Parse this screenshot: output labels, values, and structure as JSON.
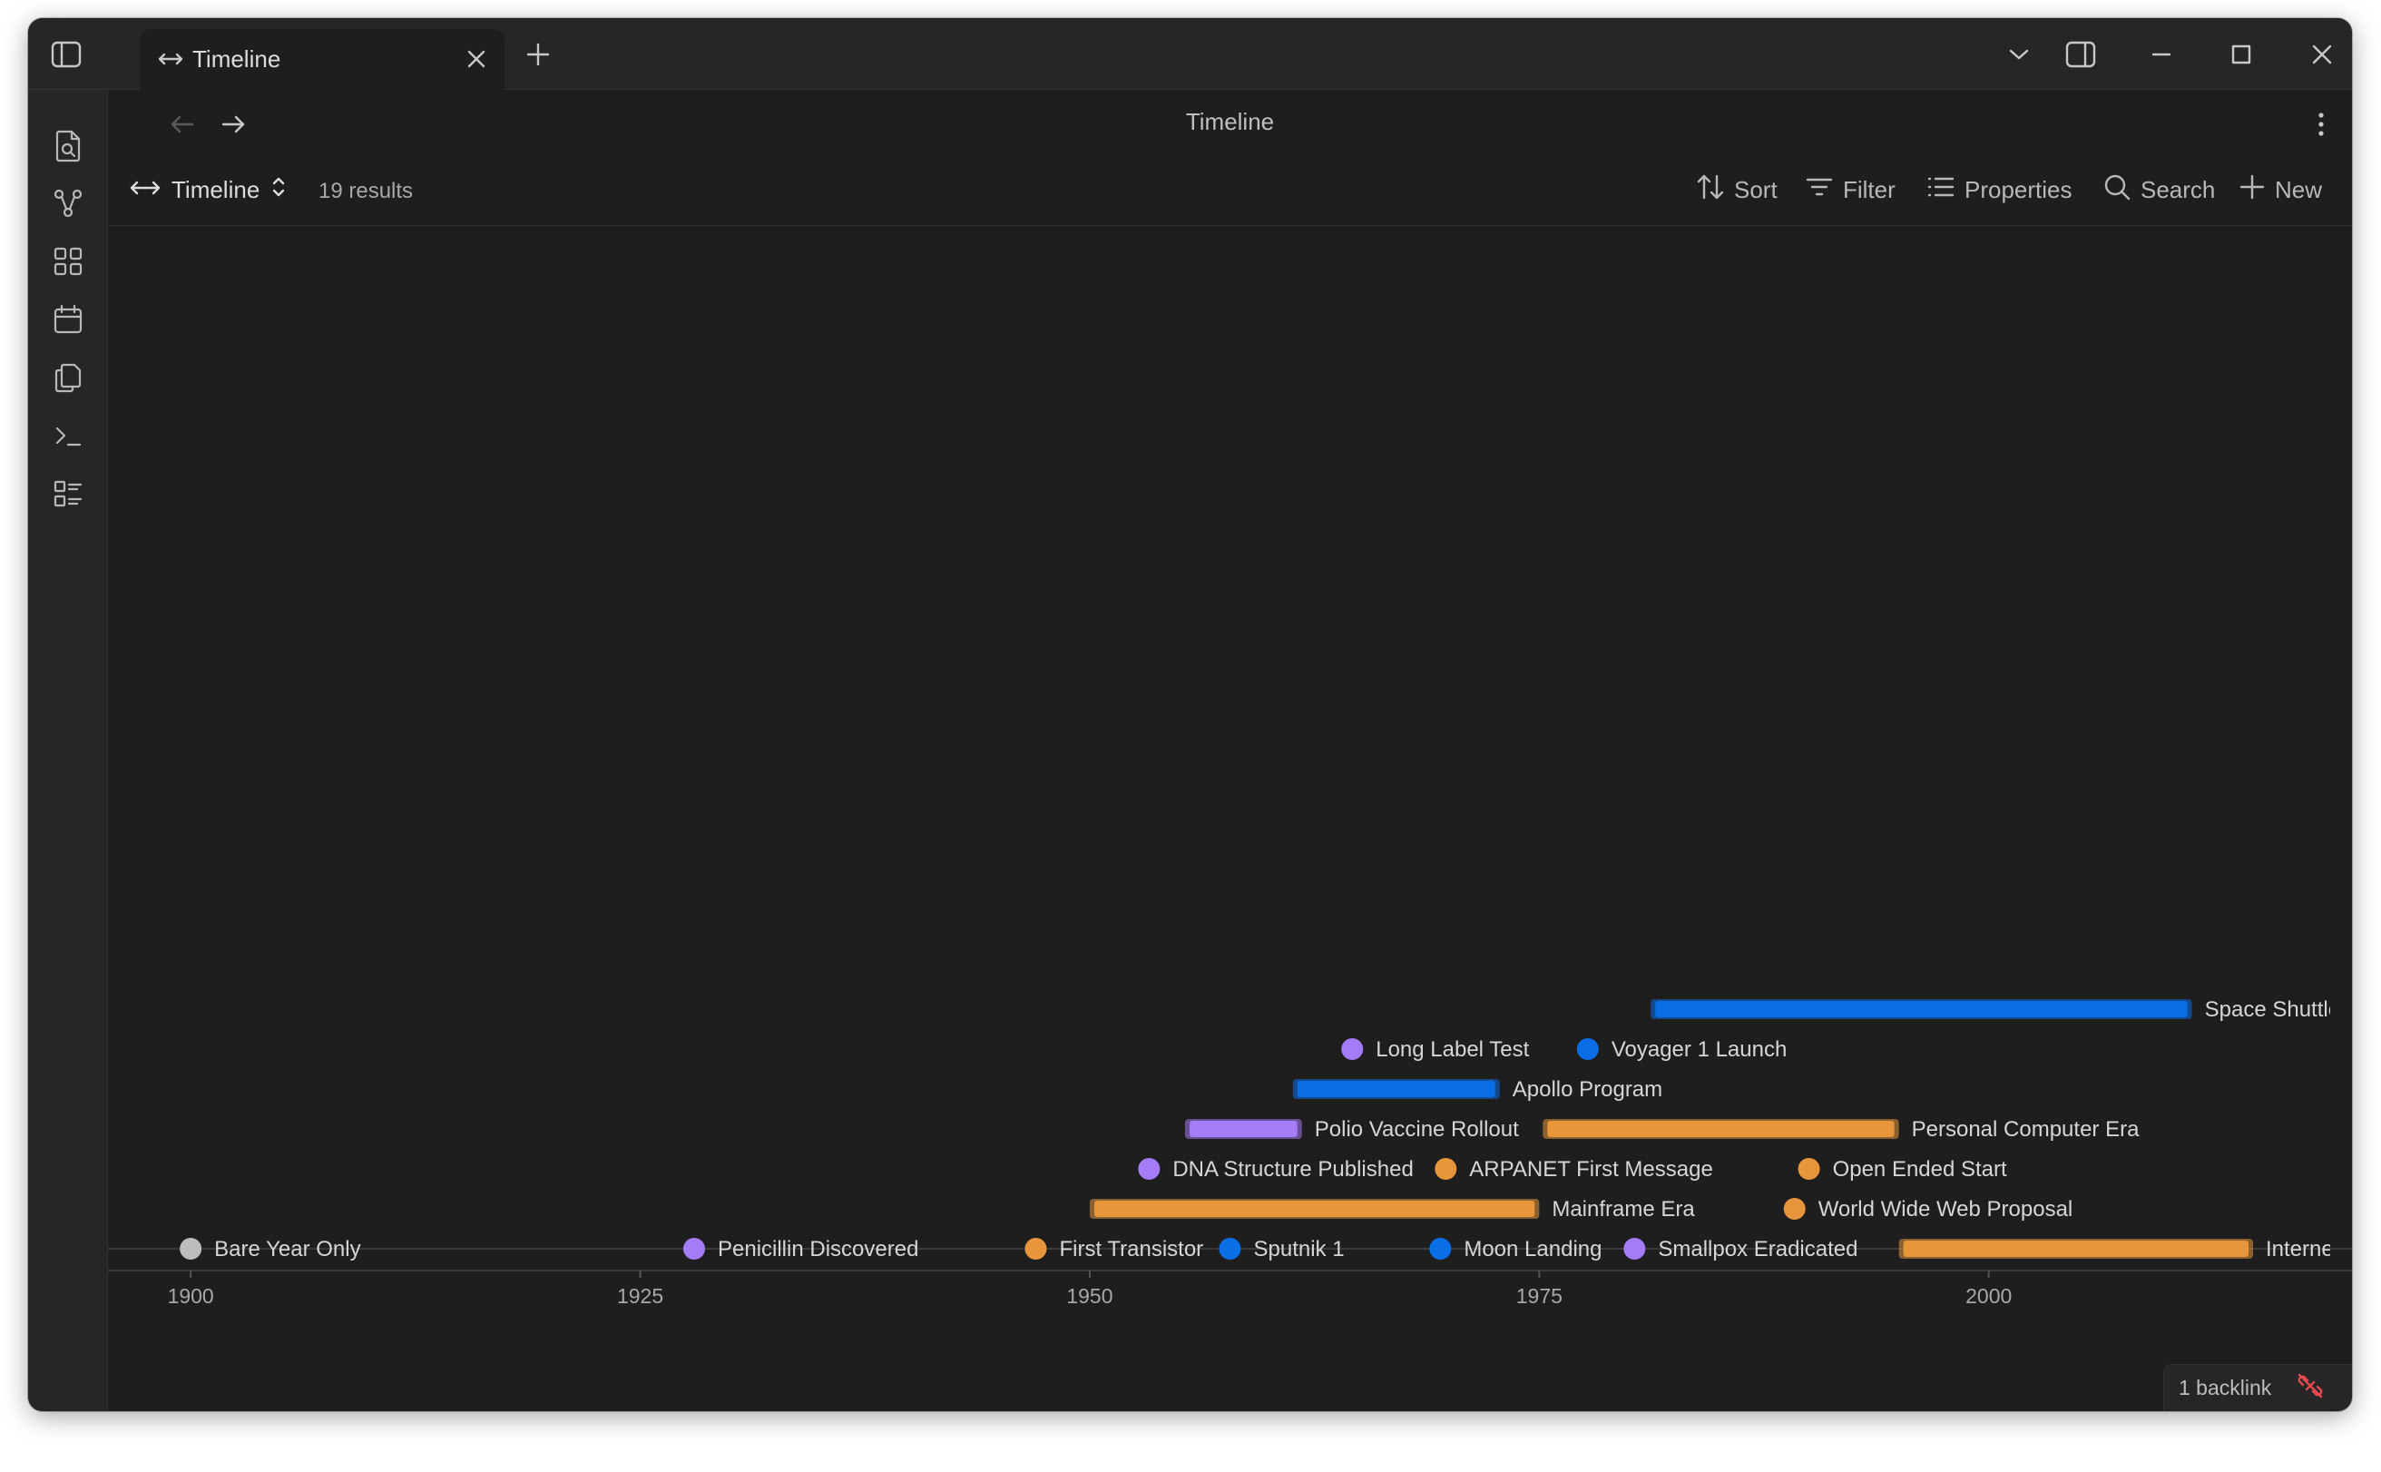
{
  "tab": {
    "title": "Timeline",
    "icon": "arrows-horizontal-icon"
  },
  "nav": {
    "title": "Timeline"
  },
  "toolbar": {
    "view_name": "Timeline",
    "results": "19 results",
    "sort": "Sort",
    "filter": "Filter",
    "properties": "Properties",
    "search": "Search",
    "new": "New"
  },
  "footer": {
    "backlinks": "1 backlink"
  },
  "colors": {
    "blue": "#0a6fe6",
    "purple": "#a47cf5",
    "orange": "#e8963c",
    "gray": "#bdbdbd"
  },
  "chart_data": {
    "type": "timeline",
    "axis": {
      "min": 1895.4,
      "max": 2020.2,
      "ticks": [
        1900,
        1925,
        1950,
        1975,
        2000
      ]
    },
    "events": [
      {
        "label": "Bare Year Only",
        "start": 1900,
        "row": 0,
        "color": "gray"
      },
      {
        "label": "Penicillin Discovered",
        "start": 1928,
        "row": 0,
        "color": "purple"
      },
      {
        "label": "First Transistor",
        "start": 1947,
        "row": 0,
        "color": "orange"
      },
      {
        "label": "Sputnik 1",
        "start": 1957.8,
        "row": 0,
        "color": "blue"
      },
      {
        "label": "Moon Landing",
        "start": 1969.5,
        "row": 0,
        "color": "blue"
      },
      {
        "label": "Smallpox Eradicated",
        "start": 1980.3,
        "row": 0,
        "color": "purple"
      },
      {
        "label": "Interne",
        "start": 1995,
        "end": 2014.7,
        "row": 0,
        "color": "orange"
      },
      {
        "label": "Mainframe Era",
        "start": 1950,
        "end": 1975,
        "row": 1,
        "color": "orange"
      },
      {
        "label": "World Wide Web Proposal",
        "start": 1989.2,
        "row": 1,
        "color": "orange"
      },
      {
        "label": "DNA Structure Published",
        "start": 1953.3,
        "row": 2,
        "color": "purple"
      },
      {
        "label": "ARPANET First Message",
        "start": 1969.8,
        "row": 2,
        "color": "orange"
      },
      {
        "label": "Open Ended Start",
        "start": 1990,
        "row": 2,
        "color": "orange"
      },
      {
        "label": "Polio Vaccine Rollout",
        "start": 1955.3,
        "end": 1961.8,
        "row": 3,
        "color": "purple"
      },
      {
        "label": "Personal Computer Era",
        "start": 1975.2,
        "end": 1995,
        "row": 3,
        "color": "orange"
      },
      {
        "label": "Apollo Program",
        "start": 1961.3,
        "end": 1972.8,
        "row": 4,
        "color": "blue"
      },
      {
        "label": "Long Label Test",
        "start": 1964.6,
        "row": 5,
        "color": "purple"
      },
      {
        "label": "Voyager 1 Launch",
        "start": 1977.7,
        "row": 5,
        "color": "blue"
      },
      {
        "label": "Space Shuttle",
        "start": 1981.2,
        "end": 2011.3,
        "row": 6,
        "color": "blue"
      }
    ]
  }
}
